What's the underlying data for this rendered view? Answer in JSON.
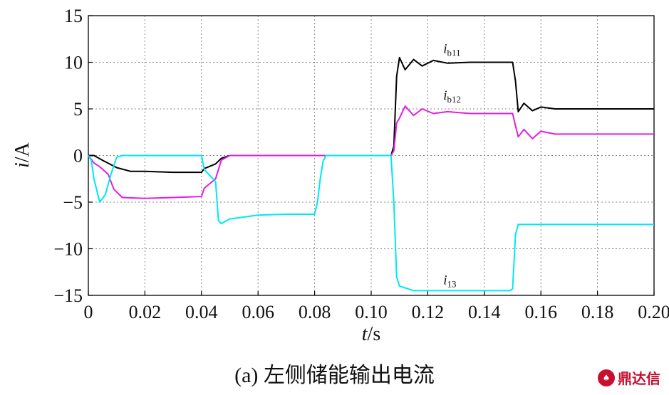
{
  "chart_data": {
    "type": "line",
    "xlabel": "t/s",
    "ylabel": "i/A",
    "xlim": [
      0,
      0.2
    ],
    "ylim": [
      -15,
      15
    ],
    "xticks": [
      0,
      0.02,
      0.04,
      0.06,
      0.08,
      0.1,
      0.12,
      0.14,
      0.16,
      0.18,
      0.2
    ],
    "xtick_labels": [
      "0",
      "0.02",
      "0.04",
      "0.06",
      "0.08",
      "0.10",
      "0.12",
      "0.14",
      "0.16",
      "0.18",
      "0.20"
    ],
    "yticks": [
      -15,
      -10,
      -5,
      0,
      5,
      10,
      15
    ],
    "ytick_labels": [
      "−15",
      "−10",
      "−5",
      "0",
      "5",
      "10",
      "15"
    ],
    "grid": true,
    "series": [
      {
        "name": "ib11",
        "color": "#000000",
        "x": [
          0,
          0.002,
          0.005,
          0.01,
          0.015,
          0.02,
          0.03,
          0.04,
          0.041,
          0.045,
          0.047,
          0.05,
          0.1,
          0.107,
          0.108,
          0.109,
          0.11,
          0.112,
          0.115,
          0.118,
          0.122,
          0.127,
          0.135,
          0.15,
          0.151,
          0.152,
          0.154,
          0.157,
          0.16,
          0.165,
          0.2
        ],
        "y": [
          0,
          0,
          -0.5,
          -1.3,
          -1.7,
          -1.7,
          -1.8,
          -1.8,
          -1.4,
          -0.9,
          -0.3,
          0,
          0,
          0,
          1.0,
          8.5,
          10.5,
          9.2,
          10.3,
          9.6,
          10.2,
          9.9,
          10.0,
          10.0,
          8.0,
          4.7,
          5.6,
          4.8,
          5.2,
          5.0,
          5.0
        ]
      },
      {
        "name": "ib12",
        "color": "#e020e0",
        "x": [
          0,
          0.002,
          0.004,
          0.007,
          0.009,
          0.012,
          0.02,
          0.03,
          0.04,
          0.041,
          0.045,
          0.047,
          0.05,
          0.1,
          0.107,
          0.108,
          0.109,
          0.11,
          0.112,
          0.115,
          0.118,
          0.122,
          0.127,
          0.135,
          0.15,
          0.151,
          0.152,
          0.154,
          0.157,
          0.16,
          0.165,
          0.2
        ],
        "y": [
          0,
          -0.8,
          -1.2,
          -2.0,
          -3.6,
          -4.5,
          -4.6,
          -4.5,
          -4.4,
          -3.5,
          -2.5,
          -0.5,
          0,
          0,
          0,
          0.5,
          3.5,
          4.0,
          5.3,
          4.3,
          5.0,
          4.5,
          4.7,
          4.5,
          4.5,
          3.2,
          2.0,
          2.8,
          1.8,
          2.6,
          2.3,
          2.3
        ]
      },
      {
        "name": "i13",
        "color": "#00e8f0",
        "x": [
          0,
          0.001,
          0.002,
          0.004,
          0.006,
          0.008,
          0.01,
          0.012,
          0.04,
          0.041,
          0.045,
          0.046,
          0.047,
          0.05,
          0.06,
          0.07,
          0.08,
          0.081,
          0.082,
          0.083,
          0.084,
          0.1,
          0.107,
          0.108,
          0.109,
          0.11,
          0.112,
          0.115,
          0.12,
          0.149,
          0.15,
          0.151,
          0.152,
          0.2
        ],
        "y": [
          0,
          -0.5,
          -2.5,
          -5.0,
          -4.2,
          -2.0,
          -0.2,
          0,
          0,
          -1.5,
          -2.8,
          -7.0,
          -7.3,
          -6.8,
          -6.4,
          -6.3,
          -6.3,
          -5.0,
          -2.5,
          -0.6,
          0,
          0,
          0,
          -5.0,
          -13.0,
          -14.0,
          -14.2,
          -14.5,
          -14.5,
          -14.5,
          -14.3,
          -8.5,
          -7.4,
          -7.4
        ]
      }
    ],
    "annotations": [
      {
        "base": "i",
        "sub": "b11",
        "x": 0.1255,
        "y": 11.0
      },
      {
        "base": "i",
        "sub": "b12",
        "x": 0.1255,
        "y": 6.0
      },
      {
        "base": "i",
        "sub": "13",
        "x": 0.1255,
        "y": -13.8
      }
    ]
  },
  "caption": "(a) 左侧储能输出电流",
  "watermark": "鼎达信"
}
